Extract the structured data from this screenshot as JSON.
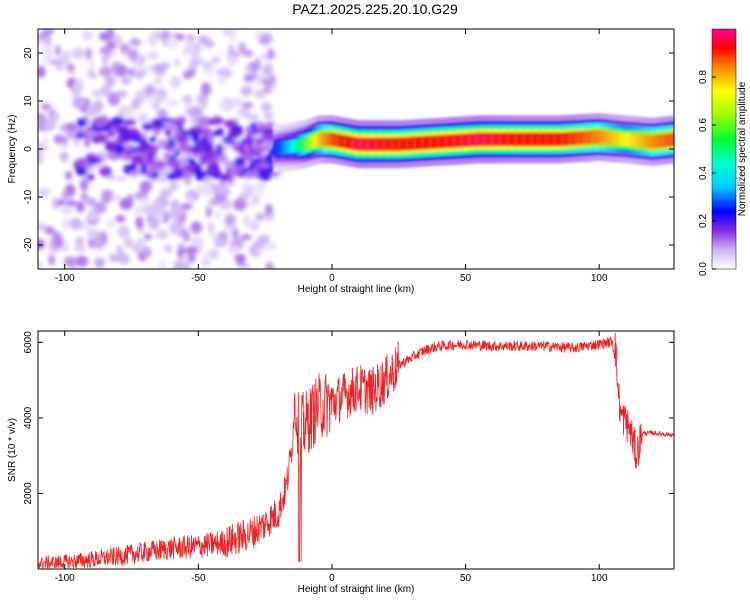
{
  "figure": {
    "title": "PAZ1.2025.225.20.10.G29"
  },
  "chart_data": [
    {
      "type": "heatmap",
      "xlabel": "Height of straight line (km)",
      "ylabel": "Frequency (Hz)",
      "xlim": [
        -110,
        128
      ],
      "ylim": [
        -25,
        25
      ],
      "xticks": [
        -100,
        -50,
        0,
        50,
        100
      ],
      "yticks": [
        -20,
        -10,
        0,
        10,
        20
      ],
      "grid": false,
      "colorbar": {
        "label": "Normalized spectral amplitude",
        "range": [
          0,
          1
        ],
        "ticks": [
          0.0,
          0.2,
          0.4,
          0.6,
          0.8
        ],
        "colors": [
          "#ffffff",
          "#cdb3f3",
          "#8a2be2",
          "#0000ff",
          "#00ffff",
          "#00ff66",
          "#99ff00",
          "#ffff00",
          "#ff8800",
          "#ff0000",
          "#ff0099"
        ]
      },
      "ridge": [
        {
          "x": -22,
          "f": 0.0,
          "amp": 0.3
        },
        {
          "x": -15,
          "f": 0.5,
          "amp": 0.4
        },
        {
          "x": -10,
          "f": 1.0,
          "amp": 0.55
        },
        {
          "x": -5,
          "f": 2.0,
          "amp": 0.75
        },
        {
          "x": 0,
          "f": 2.0,
          "amp": 0.85
        },
        {
          "x": 10,
          "f": 1.0,
          "amp": 0.95
        },
        {
          "x": 25,
          "f": 1.0,
          "amp": 0.9
        },
        {
          "x": 40,
          "f": 1.5,
          "amp": 0.9
        },
        {
          "x": 55,
          "f": 2.0,
          "amp": 0.95
        },
        {
          "x": 70,
          "f": 2.0,
          "amp": 0.9
        },
        {
          "x": 85,
          "f": 2.0,
          "amp": 0.9
        },
        {
          "x": 100,
          "f": 2.5,
          "amp": 0.8
        },
        {
          "x": 110,
          "f": 2.0,
          "amp": 0.7
        },
        {
          "x": 120,
          "f": 1.5,
          "amp": 0.8
        },
        {
          "x": 128,
          "f": 2.0,
          "amp": 0.85
        }
      ]
    },
    {
      "type": "line",
      "xlabel": "Height of straight line (km)",
      "ylabel": "SNR (10 * v/v)",
      "xlim": [
        -110,
        128
      ],
      "ylim": [
        0,
        6300
      ],
      "xticks": [
        -100,
        -50,
        0,
        50,
        100
      ],
      "yticks": [
        2000,
        4000,
        6000
      ],
      "grid": false,
      "series_color": "#ee2222",
      "series": [
        {
          "x": [
            -110,
            -100,
            -90,
            -80,
            -70,
            -60,
            -50,
            -40,
            -30,
            -25,
            -20,
            -17,
            -15,
            -14,
            -13,
            -12,
            -11,
            -10,
            -5,
            0,
            5,
            10,
            15,
            20,
            25,
            30,
            35,
            40,
            50,
            60,
            70,
            80,
            90,
            100,
            104,
            105,
            106,
            107,
            108,
            110,
            112,
            114,
            116,
            120,
            128
          ],
          "y": [
            150,
            180,
            250,
            330,
            450,
            550,
            600,
            700,
            950,
            1200,
            1500,
            2200,
            3200,
            4400,
            4000,
            3500,
            3800,
            3800,
            4300,
            4400,
            4600,
            4800,
            4700,
            5000,
            5400,
            5600,
            5800,
            5900,
            5950,
            5900,
            5900,
            5900,
            5850,
            5950,
            6000,
            6050,
            5950,
            4800,
            4100,
            3900,
            3600,
            3000,
            3600,
            3600,
            3550
          ]
        }
      ]
    }
  ]
}
